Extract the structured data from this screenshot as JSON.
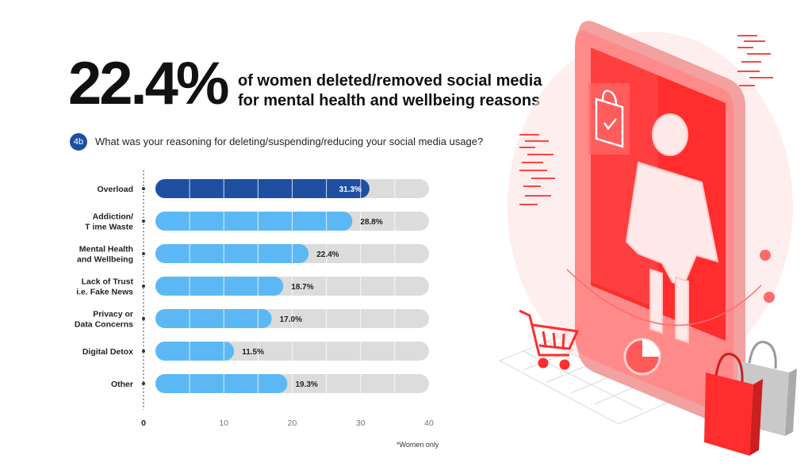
{
  "header": {
    "stat": "22.4%",
    "line1": "of women deleted/removed social media",
    "line2": "for mental health and wellbeing reasons"
  },
  "question": {
    "badge": "4b",
    "text": "What was your reasoning for deleting/suspending/reducing your social media usage?"
  },
  "footnote": "*Women only",
  "colors": {
    "highlight": "#1f4fa1",
    "bar": "#5cb8f5",
    "track": "#dcdcdc",
    "accent": "#ff3b3b"
  },
  "illustration": {
    "icons": [
      "phone-icon",
      "woman-icon",
      "shopping-bag-icon",
      "shopping-cart-icon"
    ]
  },
  "chart_data": {
    "type": "bar",
    "orientation": "horizontal",
    "categories": [
      [
        "Overload"
      ],
      [
        "Addiction/",
        "T ime Waste"
      ],
      [
        "Mental Health",
        "and Wellbeing"
      ],
      [
        "Lack of Trust",
        "i.e. Fake News"
      ],
      [
        "Privacy or",
        "Data Concerns"
      ],
      [
        "Digital Detox"
      ],
      [
        "Other"
      ]
    ],
    "values": [
      31.3,
      28.8,
      22.4,
      18.7,
      17.0,
      11.5,
      19.3
    ],
    "value_labels": [
      "31.3%",
      "28.8%",
      "22.4%",
      "18.7%",
      "17.0%",
      "11.5%",
      "19.3%"
    ],
    "highlight_index": 0,
    "xlim": [
      0,
      40
    ],
    "xticks": [
      "0",
      "10",
      "20",
      "30",
      "40"
    ],
    "grid": true
  }
}
